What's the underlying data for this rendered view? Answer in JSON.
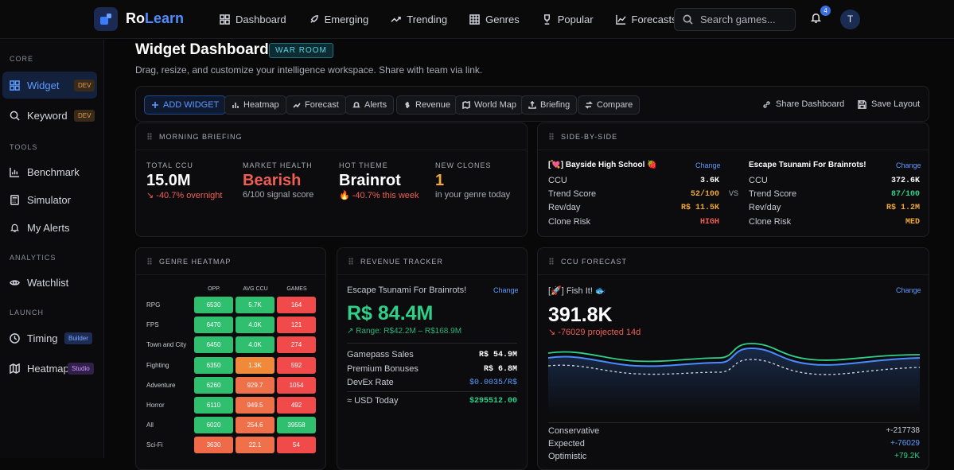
{
  "app": {
    "brand_a": "Ro",
    "brand_b": "Learn",
    "notifications": "4",
    "avatar": "T"
  },
  "nav": [
    {
      "label": "Dashboard"
    },
    {
      "label": "Emerging"
    },
    {
      "label": "Trending"
    },
    {
      "label": "Genres"
    },
    {
      "label": "Popular"
    },
    {
      "label": "Forecasts"
    }
  ],
  "search": {
    "placeholder": "Search games..."
  },
  "sidebar": {
    "core": "CORE",
    "tools": "TOOLS",
    "analytics": "ANALYTICS",
    "launch": "LAUNCH",
    "widget": "Widget",
    "widget_tag": "DEV",
    "keyword": "Keyword",
    "keyword_tag": "DEV",
    "benchmark": "Benchmark",
    "simulator": "Simulator",
    "alerts": "My Alerts",
    "watchlist": "Watchlist",
    "timing": "Timing",
    "timing_tag": "Builder",
    "heatmap": "Heatmap",
    "heatmap_tag": "Studio"
  },
  "page": {
    "title": "Widget Dashboard",
    "badge": "WAR ROOM",
    "subtitle": "Drag, resize, and customize your intelligence workspace. Share with team via link."
  },
  "toolbar": {
    "add": "ADD WIDGET",
    "heatmap": "Heatmap",
    "forecast": "Forecast",
    "alerts": "Alerts",
    "revenue": "Revenue",
    "worldmap": "World Map",
    "briefing": "Briefing",
    "compare": "Compare",
    "share": "Share Dashboard",
    "save": "Save Layout"
  },
  "briefing": {
    "header": "MORNING BRIEFING",
    "ccu_label": "TOTAL CCU",
    "ccu": "15.0M",
    "ccu_sub": "-40.7% overnight",
    "health_label": "MARKET HEALTH",
    "health": "Bearish",
    "health_sub": "6/100 signal score",
    "theme_label": "HOT THEME",
    "theme": "Brainrot",
    "theme_sub": "-40.7% this week",
    "clones_label": "NEW CLONES",
    "clones": "1",
    "clones_sub": "in your genre today"
  },
  "compare": {
    "header": "SIDE-BY-SIDE",
    "vs": "VS",
    "change": "Change",
    "left": {
      "name": "[💘] Bayside High School 🍓",
      "ccu": "3.6K",
      "trend": "52/100",
      "rev": "R$ 11.5K",
      "risk": "HIGH"
    },
    "right": {
      "name": "Escape Tsunami For Brainrots!",
      "ccu": "372.6K",
      "trend": "87/100",
      "rev": "R$ 1.2M",
      "risk": "MED"
    },
    "labels": {
      "ccu": "CCU",
      "trend": "Trend Score",
      "rev": "Rev/day",
      "risk": "Clone Risk"
    }
  },
  "heatmap": {
    "header": "GENRE HEATMAP",
    "cols": [
      "OPP.",
      "AVG CCU",
      "GAMES"
    ],
    "rows": [
      {
        "genre": "RPG",
        "opp": "6530",
        "ccu": "5.7K",
        "games": "164"
      },
      {
        "genre": "FPS",
        "opp": "6470",
        "ccu": "4.0K",
        "games": "121"
      },
      {
        "genre": "Town and City",
        "opp": "6450",
        "ccu": "4.0K",
        "games": "274"
      },
      {
        "genre": "Fighting",
        "opp": "6350",
        "ccu": "1.3K",
        "games": "592"
      },
      {
        "genre": "Adventure",
        "opp": "6260",
        "ccu": "929.7",
        "games": "1054"
      },
      {
        "genre": "Horror",
        "opp": "6110",
        "ccu": "949.5",
        "games": "492"
      },
      {
        "genre": "All",
        "opp": "6020",
        "ccu": "254.6",
        "games": "39558"
      },
      {
        "genre": "Sci-Fi",
        "opp": "3630",
        "ccu": "22.1",
        "games": "54"
      }
    ]
  },
  "revenue": {
    "header": "REVENUE TRACKER",
    "game": "Escape Tsunami For Brainrots!",
    "change": "Change",
    "total": "R$ 84.4M",
    "range": "Range: R$42.2M – R$168.9M",
    "rows": [
      {
        "label": "Gamepass Sales",
        "value": "R$ 54.9M"
      },
      {
        "label": "Premium Bonuses",
        "value": "R$ 6.8M"
      },
      {
        "label": "DevEx Rate",
        "value": "$0.0035/R$"
      },
      {
        "label": "≈ USD Today",
        "value": "$295512.00"
      }
    ]
  },
  "forecast": {
    "header": "CCU FORECAST",
    "game": "[🚀] Fish It! 🐟",
    "change": "Change",
    "value": "391.8K",
    "projected": "-76029 projected 14d",
    "rows": [
      {
        "label": "Conservative",
        "value": "+-217738"
      },
      {
        "label": "Expected",
        "value": "+-76029"
      },
      {
        "label": "Optimistic",
        "value": "+79.2K"
      }
    ]
  },
  "colors": {
    "accent": "#5d9bff",
    "red": "#ef5e55",
    "green": "#2fd08a",
    "amber": "#f0a93b"
  }
}
